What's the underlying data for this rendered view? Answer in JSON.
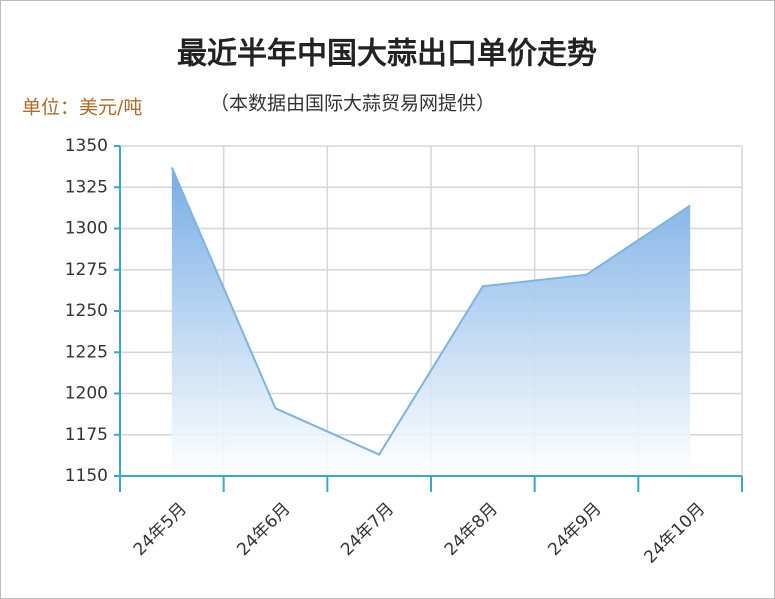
{
  "chart_data": {
    "type": "area",
    "title": "最近半年中国大蒜出口单价走势",
    "unit_label": "单位：美元/吨",
    "subtitle": "（本数据由国际大蒜贸易网提供）",
    "categories": [
      "24年5月",
      "24年6月",
      "24年7月",
      "24年8月",
      "24年9月",
      "24年10月"
    ],
    "values": [
      1337,
      1191,
      1163,
      1265,
      1272,
      1314
    ],
    "color": "#7fb3e0",
    "ylim": [
      1150,
      1350
    ],
    "yticks": [
      1150,
      1175,
      1200,
      1225,
      1250,
      1275,
      1300,
      1325,
      1350
    ],
    "grid": true
  }
}
